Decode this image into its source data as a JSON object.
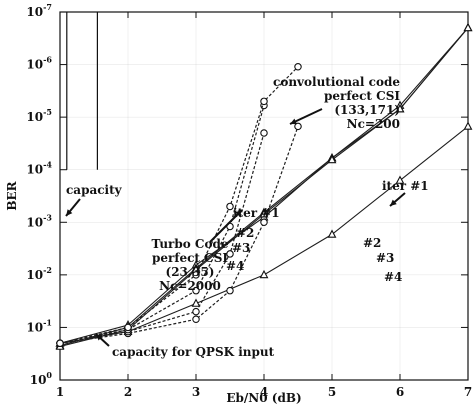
{
  "chart_data": {
    "type": "line",
    "title": "",
    "xlabel": "Eb/N0 (dB)",
    "ylabel": "BER",
    "xlim": [
      1,
      7
    ],
    "ylim_log10": [
      -7,
      0
    ],
    "xticks": [
      1,
      2,
      3,
      4,
      5,
      6,
      7
    ],
    "yticks_log10": [
      0,
      -1,
      -2,
      -3,
      -4,
      -5,
      -6,
      -7
    ],
    "x_tick_labels": [
      "1",
      "2",
      "3",
      "4",
      "5",
      "6",
      "7"
    ],
    "y_tick_labels": [
      {
        "base": "10",
        "exp": "0"
      },
      {
        "base": "10",
        "exp": "-1"
      },
      {
        "base": "10",
        "exp": "-2"
      },
      {
        "base": "10",
        "exp": "-3"
      },
      {
        "base": "10",
        "exp": "-4"
      },
      {
        "base": "10",
        "exp": "-5"
      },
      {
        "base": "10",
        "exp": "-6"
      },
      {
        "base": "10",
        "exp": "-7"
      }
    ],
    "series": [
      {
        "group": "conv",
        "marker": "triangle",
        "x": [
          1,
          2,
          3,
          4,
          5,
          6,
          7
        ],
        "y": [
          0.2,
          0.12,
          0.035,
          0.01,
          0.0017,
          0.00016,
          1.5e-05
        ]
      },
      {
        "group": "conv",
        "marker": "triangle",
        "x": [
          1,
          2,
          3,
          4,
          5,
          6,
          7
        ],
        "y": [
          0.2,
          0.09,
          0.0065,
          0.0008,
          6e-05,
          6e-06,
          2e-07
        ]
      },
      {
        "group": "conv",
        "marker": "triangle",
        "x": [
          1,
          2,
          3,
          4,
          5,
          6,
          7
        ],
        "y": [
          0.22,
          0.1,
          0.0075,
          0.00065,
          6e-05,
          7e-06,
          2e-07
        ]
      },
      {
        "group": "conv",
        "marker": "triangle",
        "x": [
          1,
          2,
          3,
          4,
          5,
          6,
          7
        ],
        "y": [
          0.23,
          0.11,
          0.008,
          0.0007,
          6.5e-05,
          7e-06,
          2e-07
        ]
      },
      {
        "group": "turbo",
        "marker": "circle",
        "x": [
          1,
          2,
          3,
          3.5,
          4,
          4.5
        ],
        "y": [
          0.2,
          0.13,
          0.07,
          0.02,
          0.001,
          1.5e-05
        ]
      },
      {
        "group": "turbo",
        "marker": "circle",
        "x": [
          1,
          2,
          3,
          3.5,
          4
        ],
        "y": [
          0.2,
          0.12,
          0.05,
          0.004,
          2e-05
        ]
      },
      {
        "group": "turbo",
        "marker": "circle",
        "x": [
          1,
          2,
          3,
          3.5,
          4
        ],
        "y": [
          0.2,
          0.11,
          0.02,
          0.0012,
          6e-06
        ]
      },
      {
        "group": "turbo",
        "marker": "circle",
        "x": [
          1,
          2,
          3,
          3.5,
          4,
          4.5
        ],
        "y": [
          0.2,
          0.1,
          0.01,
          0.0005,
          5e-06,
          1.1e-06
        ]
      }
    ],
    "capacity_lines": [
      {
        "x": 1.1,
        "y_top": 0.0001,
        "y_bottom": 1e-07
      },
      {
        "x": 1.55,
        "y_top": 0.0001,
        "y_bottom": 1e-07
      }
    ],
    "annotations": [
      {
        "id": "conv-label",
        "lines": [
          "convolutional code",
          "perfect CSI",
          "(133,171)",
          "Nc=200"
        ]
      },
      {
        "id": "turbo-label",
        "lines": [
          "Turbo Code",
          "perfect CSI",
          "(23,35)",
          "Nc=2000"
        ]
      },
      {
        "id": "capacity-label",
        "text": "capacity"
      },
      {
        "id": "capacity-qpsk-label",
        "text": "capacity for QPSK input"
      },
      {
        "id": "iter1-conv",
        "text": "iter #1"
      },
      {
        "id": "iter2-conv",
        "text": "#2"
      },
      {
        "id": "iter3-conv",
        "text": "#3"
      },
      {
        "id": "iter4-conv",
        "text": "#4"
      },
      {
        "id": "iter1-turbo",
        "text": "iter #1"
      },
      {
        "id": "iter2-turbo",
        "text": "#2"
      },
      {
        "id": "iter3-turbo",
        "text": "#3"
      },
      {
        "id": "iter4-turbo",
        "text": "#4"
      }
    ]
  }
}
